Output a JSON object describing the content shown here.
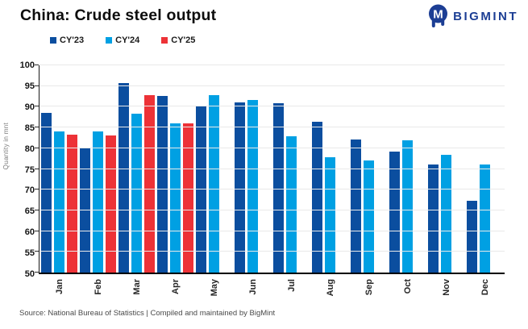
{
  "header": {
    "title": "China: Crude steel output",
    "brand": "BIGMINT"
  },
  "footer": {
    "source": "Source: National Bureau of Statistics | Compiled and maintained by BigMint"
  },
  "colors": {
    "brand_navy": "#1c3e94",
    "cy23_dark_blue": "#0b4e9f",
    "cy24_light_blue": "#00a0e3",
    "cy25_red": "#ed3237",
    "gridline": "#e9e9e9"
  },
  "chart_data": {
    "type": "bar",
    "title": "China: Crude steel output",
    "xlabel": "",
    "ylabel": "Quantity in mnt",
    "ylim": [
      50,
      100
    ],
    "ytick_step": 5,
    "grid": true,
    "legend_position": "top-left",
    "categories": [
      "Jan",
      "Feb",
      "Mar",
      "Apr",
      "May",
      "Jun",
      "Jul",
      "Aug",
      "Sep",
      "Oct",
      "Nov",
      "Dec"
    ],
    "series": [
      {
        "name": "cy23",
        "label": "CY'23",
        "color": "#0b4e9f",
        "values": [
          88.6,
          80.1,
          95.7,
          92.6,
          90.1,
          91.1,
          90.8,
          86.4,
          82.1,
          79.1,
          76.1,
          67.4
        ]
      },
      {
        "name": "cy24",
        "label": "CY'24",
        "color": "#00a0e3",
        "values": [
          84.0,
          84.0,
          88.3,
          85.9,
          92.9,
          91.6,
          82.9,
          77.9,
          77.1,
          81.9,
          78.4,
          76.0
        ]
      },
      {
        "name": "cy25",
        "label": "CY'25",
        "color": "#ed3237",
        "values": [
          83.2,
          83.1,
          92.8,
          86.0,
          null,
          null,
          null,
          null,
          null,
          null,
          null,
          null
        ]
      }
    ]
  }
}
